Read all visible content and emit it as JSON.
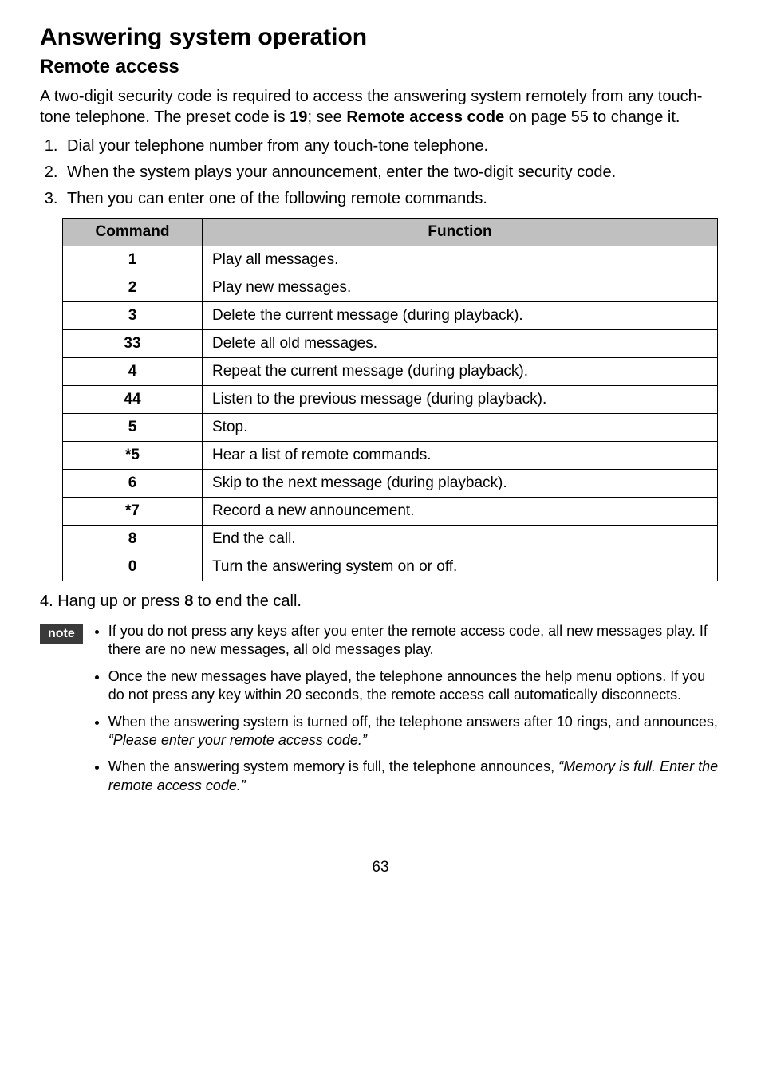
{
  "title": "Answering system operation",
  "subtitle": "Remote access",
  "intro_parts": {
    "p1": "A two-digit security code is required to access the answering system remotely from any touch-tone telephone. The preset code is ",
    "code": "19",
    "p2": "; see ",
    "link": "Remote access code",
    "p3": " on page 55 to change it."
  },
  "steps": [
    "Dial your telephone number from any touch-tone telephone.",
    "When the system plays your announcement, enter the two-digit security code.",
    "Then you can enter one of the following remote commands."
  ],
  "table": {
    "headers": {
      "command": "Command",
      "function": "Function"
    },
    "rows": [
      {
        "cmd": "1",
        "fn": "Play all messages."
      },
      {
        "cmd": "2",
        "fn": "Play new messages."
      },
      {
        "cmd": "3",
        "fn": "Delete the current message (during playback)."
      },
      {
        "cmd": "33",
        "fn": "Delete all old messages."
      },
      {
        "cmd": "4",
        "fn": "Repeat the current message (during playback)."
      },
      {
        "cmd": "44",
        "fn": "Listen to the previous message (during playback)."
      },
      {
        "cmd": "5",
        "fn": "Stop."
      },
      {
        "cmd": "*5",
        "fn": "Hear a list of remote commands."
      },
      {
        "cmd": "6",
        "fn": "Skip to the next message (during playback)."
      },
      {
        "cmd": "*7",
        "fn": "Record a new announcement."
      },
      {
        "cmd": "8",
        "fn": "End the call."
      },
      {
        "cmd": "0",
        "fn": "Turn the answering system on or off."
      }
    ]
  },
  "step4": {
    "prefix": "4.  Hang up or press ",
    "key": "8",
    "suffix": " to end the call."
  },
  "note_label": "note",
  "notes": [
    {
      "plain": "If you do not press any keys after you enter the remote access code, all new messages play. If there are no new messages, all old messages play.",
      "italic": ""
    },
    {
      "plain": "Once the new messages have played, the telephone announces the help menu options. If you do not press any key within 20 seconds, the remote access call automatically disconnects.",
      "italic": ""
    },
    {
      "plain": "When the answering system is turned off, the telephone answers after 10 rings, and announces, ",
      "italic": "“Please enter your remote access code.”"
    },
    {
      "plain": "When the answering system memory is full, the telephone announces, ",
      "italic": "“Memory is full. Enter the remote access code.”"
    }
  ],
  "page_number": "63"
}
